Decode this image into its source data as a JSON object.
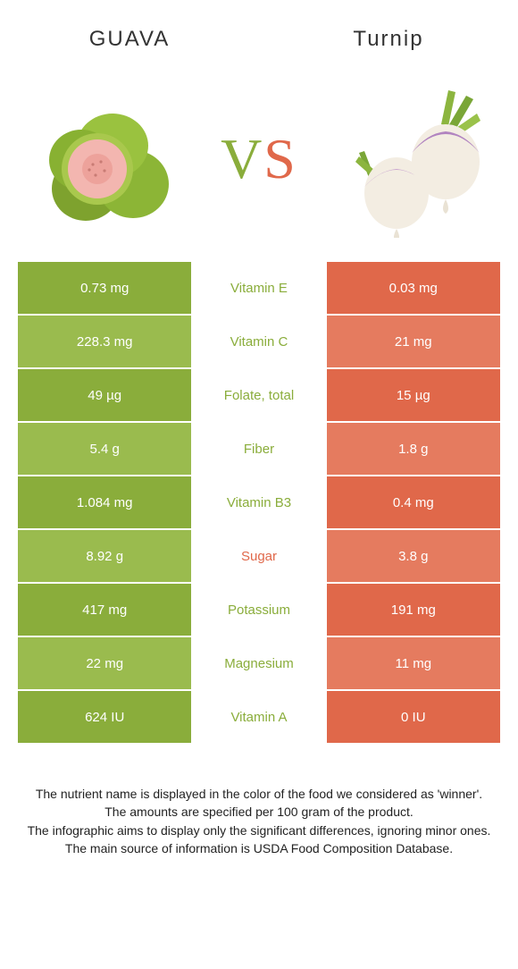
{
  "colors": {
    "left": "#8aad3b",
    "right": "#e0684a",
    "left_alt": "#9abb4e",
    "right_alt": "#e57b5f",
    "mid_text_left": "#8aad3b",
    "mid_text_right": "#e0684a"
  },
  "header": {
    "left": "GUAVA",
    "right": "Turnip",
    "left_case": "uppercase",
    "right_case": "none"
  },
  "vs": {
    "v": "V",
    "s": "S"
  },
  "rows": [
    {
      "left": "0.73 mg",
      "label": "Vitamin E",
      "right": "0.03 mg",
      "winner": "left"
    },
    {
      "left": "228.3 mg",
      "label": "Vitamin C",
      "right": "21 mg",
      "winner": "left"
    },
    {
      "left": "49 µg",
      "label": "Folate, total",
      "right": "15 µg",
      "winner": "left"
    },
    {
      "left": "5.4 g",
      "label": "Fiber",
      "right": "1.8 g",
      "winner": "left"
    },
    {
      "left": "1.084 mg",
      "label": "Vitamin B3",
      "right": "0.4 mg",
      "winner": "left"
    },
    {
      "left": "8.92 g",
      "label": "Sugar",
      "right": "3.8 g",
      "winner": "right"
    },
    {
      "left": "417 mg",
      "label": "Potassium",
      "right": "191 mg",
      "winner": "left"
    },
    {
      "left": "22 mg",
      "label": "Magnesium",
      "right": "11 mg",
      "winner": "left"
    },
    {
      "left": "624 IU",
      "label": "Vitamin A",
      "right": "0 IU",
      "winner": "left"
    }
  ],
  "footer": {
    "l1": "The nutrient name is displayed in the color of the food we considered as 'winner'.",
    "l2": "The amounts are specified per 100 gram of the product.",
    "l3": "The infographic aims to display only the significant differences, ignoring minor ones.",
    "l4": "The main source of information is USDA Food Composition Database."
  }
}
